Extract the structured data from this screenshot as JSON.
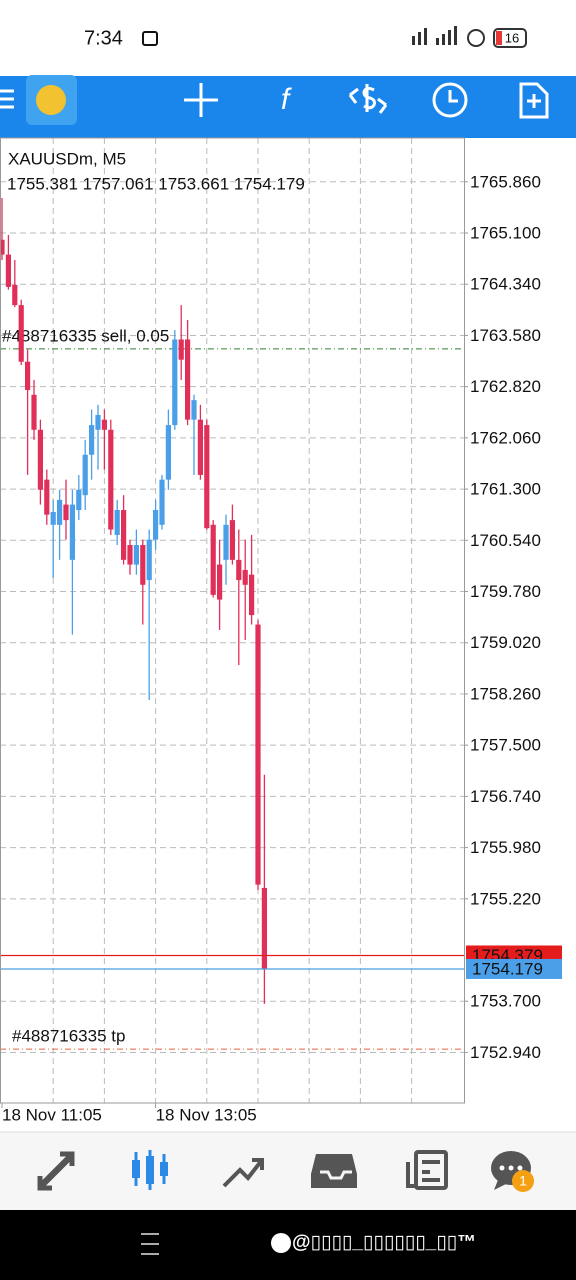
{
  "status_bar": {
    "time": "7:34",
    "battery": "16"
  },
  "chart_data": {
    "type": "candlestick",
    "title": "XAUUSDm, M5",
    "subtitle": "1755.381 1757.061 1753.661 1754.179",
    "categories": [
      "18 Nov 11:05",
      null,
      null,
      null,
      null,
      null,
      null,
      null,
      null,
      null,
      null,
      null,
      null,
      null,
      null,
      null,
      null,
      null,
      null,
      null,
      null,
      null,
      null,
      null,
      "18 Nov 13:05",
      null,
      null,
      null,
      null,
      null,
      null,
      null,
      null,
      null,
      null,
      null,
      null,
      null,
      null,
      null,
      null,
      null
    ],
    "open": [
      1765.0,
      1764.78,
      1764.33,
      1764.03,
      1763.19,
      1762.7,
      1762.18,
      1761.44,
      1760.77,
      1760.77,
      1761.07,
      1760.25,
      1760.99,
      1761.21,
      1761.81,
      1762.18,
      1762.33,
      1762.18,
      1760.62,
      1760.99,
      1760.47,
      1760.18,
      1760.47,
      1759.95,
      1760.55,
      1760.77,
      1761.44,
      1762.25,
      1763.52,
      1763.52,
      1762.33,
      1762.33,
      1762.25,
      1760.77,
      1760.18,
      1760.25,
      1760.84,
      1760.25,
      1760.1,
      1760.03,
      1759.29,
      1755.381
    ],
    "high": [
      1765.62,
      1765.07,
      1764.7,
      1764.11,
      1763.37,
      1762.92,
      1762.33,
      1761.59,
      1761.14,
      1761.29,
      1761.44,
      1761.29,
      1761.51,
      1762.03,
      1762.48,
      1762.55,
      1762.48,
      1762.33,
      1761.14,
      1761.21,
      1760.55,
      1760.7,
      1760.55,
      1760.7,
      1761.14,
      1761.51,
      1762.48,
      1763.66,
      1764.03,
      1763.81,
      1762.7,
      1762.55,
      1762.33,
      1760.84,
      1760.55,
      1760.92,
      1761.07,
      1760.7,
      1760.55,
      1760.62,
      1759.36,
      1757.061
    ],
    "low": [
      1764.7,
      1764.26,
      1764.0,
      1763.14,
      1761.51,
      1762.03,
      1761.07,
      1760.77,
      1759.98,
      1760.25,
      1760.55,
      1759.14,
      1760.84,
      1760.99,
      1761.44,
      1761.59,
      1761.59,
      1760.62,
      1760.47,
      1760.18,
      1760.03,
      1760.03,
      1759.29,
      1758.17,
      1760.4,
      1760.7,
      1761.29,
      1762.18,
      1762.92,
      1762.25,
      1761.51,
      1761.44,
      1760.7,
      1759.69,
      1759.21,
      1759.88,
      1760.18,
      1758.69,
      1759.06,
      1759.29,
      1755.35,
      1753.661
    ],
    "close": [
      1764.78,
      1764.3,
      1764.03,
      1763.19,
      1762.77,
      1762.18,
      1761.29,
      1760.92,
      1760.96,
      1761.14,
      1760.84,
      1761.07,
      1761.29,
      1761.81,
      1762.25,
      1762.4,
      1762.18,
      1760.7,
      1760.99,
      1760.25,
      1760.18,
      1760.47,
      1759.88,
      1760.55,
      1760.99,
      1761.44,
      1762.25,
      1763.52,
      1763.22,
      1762.33,
      1762.62,
      1761.51,
      1760.72,
      1759.73,
      1759.66,
      1760.77,
      1760.25,
      1759.95,
      1759.88,
      1759.43,
      1755.43,
      1754.179
    ],
    "up_color": "#4a9fe8",
    "down_color": "#e0305a",
    "ylim": [
      1752.19,
      1766.51
    ],
    "yticks": [
      {
        "value": 1765.86,
        "label": "1765.860"
      },
      {
        "value": 1765.1,
        "label": "1765.100"
      },
      {
        "value": 1764.34,
        "label": "1764.340"
      },
      {
        "value": 1763.58,
        "label": "1763.580"
      },
      {
        "value": 1762.82,
        "label": "1762.820"
      },
      {
        "value": 1762.06,
        "label": "1762.060"
      },
      {
        "value": 1761.3,
        "label": "1761.300"
      },
      {
        "value": 1760.54,
        "label": "1760.540"
      },
      {
        "value": 1759.78,
        "label": "1759.780"
      },
      {
        "value": 1759.02,
        "label": "1759.020"
      },
      {
        "value": 1758.26,
        "label": "1758.260"
      },
      {
        "value": 1757.5,
        "label": "1757.500"
      },
      {
        "value": 1756.74,
        "label": "1756.740"
      },
      {
        "value": 1755.98,
        "label": "1755.980"
      },
      {
        "value": 1755.22,
        "label": "1755.220"
      },
      {
        "value": 1753.7,
        "label": "1753.700"
      },
      {
        "value": 1752.94,
        "label": "1752.940"
      }
    ],
    "grid": true,
    "order_lines": [
      {
        "label": "#488716335 sell, 0.05",
        "value": 1763.38,
        "color": "#2e7d32"
      },
      {
        "label": "#488716335 tp",
        "value": 1752.99,
        "color": "#e0663a"
      }
    ],
    "price_lines": [
      {
        "value": 1754.379,
        "color": "#e51c1c"
      },
      {
        "value": 1754.179,
        "color": "#4a9fe8"
      }
    ]
  },
  "bottom_nav": {
    "badge": "1"
  },
  "system_bar": {
    "watermark": "@▯▯▯▯_▯▯▯▯▯▯_▯▯™"
  }
}
